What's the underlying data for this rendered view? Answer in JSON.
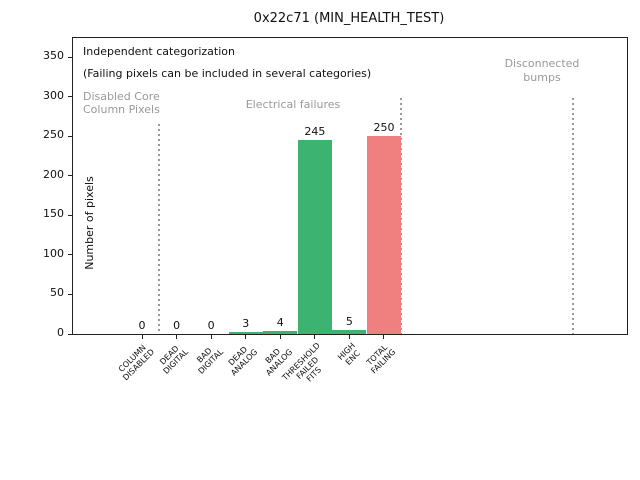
{
  "chart_data": {
    "type": "bar",
    "title": "0x22c71 (MIN_HEALTH_TEST)",
    "ylabel": "Number of pixels",
    "xlabel": "",
    "categories": [
      "COLUMN\nDISABLED",
      "DEAD\nDIGITAL",
      "BAD\nDIGITAL",
      "DEAD\nANALOG",
      "BAD\nANALOG",
      "THRESHOLD\nFAILED\nFITS",
      "HIGH\nENC",
      "TOTAL\nFAILING"
    ],
    "values": [
      0,
      0,
      0,
      3,
      4,
      245,
      5,
      250
    ],
    "bar_value_labels": [
      "0",
      "0",
      "0",
      "3",
      "4",
      "245",
      "5",
      "250"
    ],
    "bar_colors": [
      "#3cb371",
      "#3cb371",
      "#3cb371",
      "#3cb371",
      "#3cb371",
      "#3cb371",
      "#3cb371",
      "#f08080"
    ],
    "yticks": [
      0,
      50,
      100,
      150,
      200,
      250,
      300,
      350
    ],
    "ylim": [
      0,
      375
    ],
    "grid": false,
    "legend": null,
    "annotations": {
      "heading": "Independent categorization",
      "subheading": "(Failing pixels can be included in several categories)",
      "region_labels": [
        {
          "text": "Disabled Core\nColumn Pixels"
        },
        {
          "text": "Electrical failures"
        },
        {
          "text": "Disconnected\nbumps"
        }
      ]
    },
    "colors": {
      "bar_green": "#3cb371",
      "bar_red": "#f08080",
      "annotation_gray": "#999999",
      "separator_gray": "#999999",
      "axis_black": "#222222"
    }
  }
}
